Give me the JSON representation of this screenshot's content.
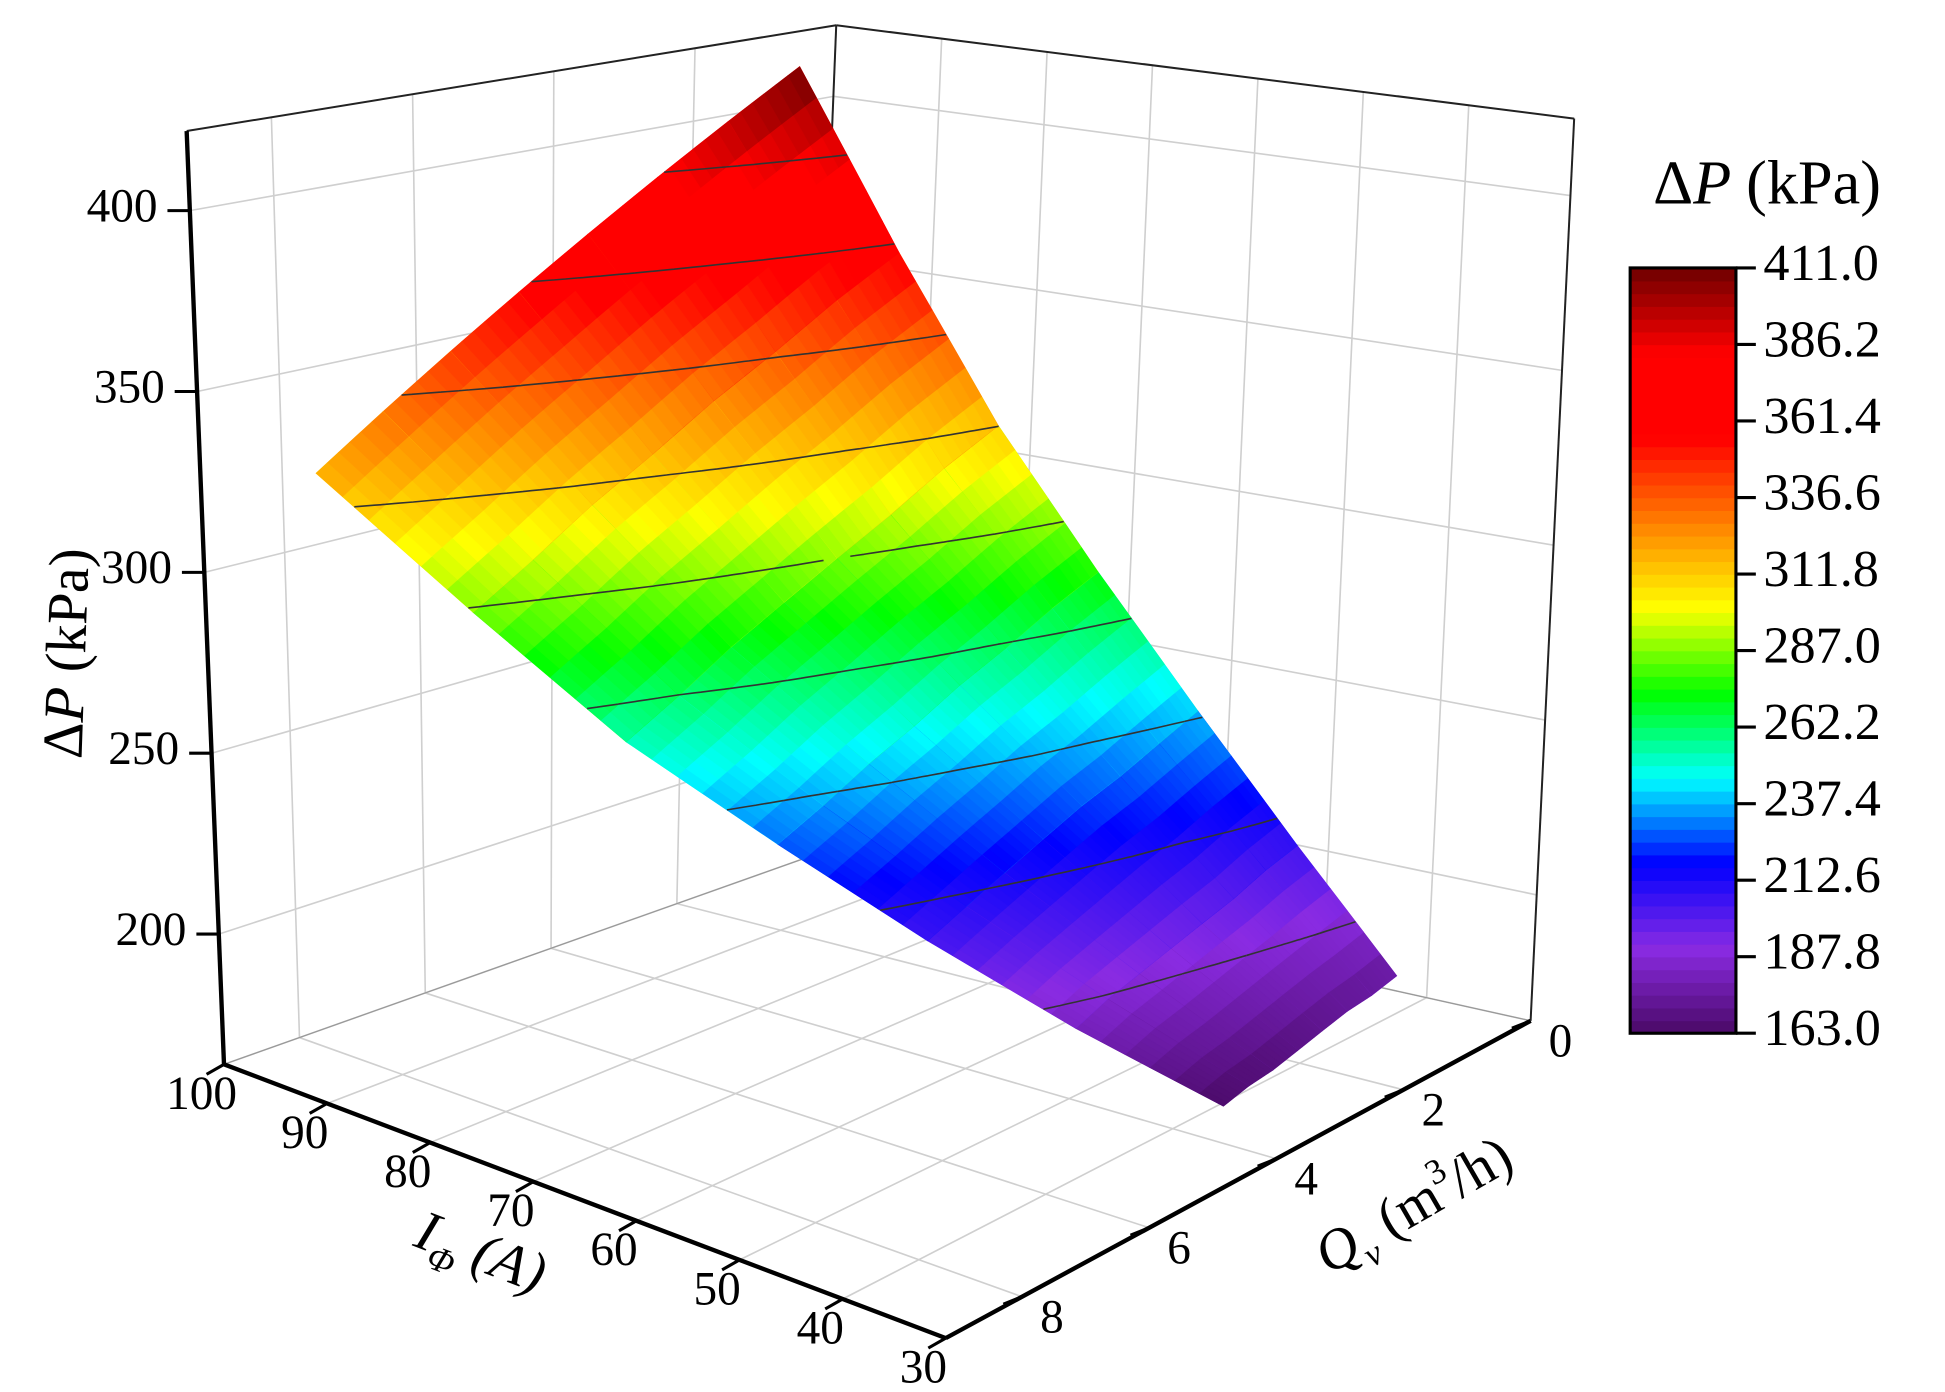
{
  "chart_data": {
    "type": "surface",
    "x_label": {
      "symbol": "I",
      "subscript": "Φ",
      "unit": "(A)"
    },
    "y_label": {
      "symbol": "Q",
      "subscript": "v",
      "unit": "(m",
      "superscript": "3",
      "unit_end": "/h)"
    },
    "z_label": {
      "prefix": "Δ",
      "symbol": "P",
      "unit": "(kPa)"
    },
    "xlim": [
      30,
      100
    ],
    "xticks": [
      30,
      40,
      50,
      60,
      70,
      80,
      90,
      100
    ],
    "ylim": [
      0,
      9.2
    ],
    "yticks": [
      0,
      2,
      4,
      6,
      8
    ],
    "zlim": [
      164,
      422
    ],
    "zticks": [
      200,
      250,
      300,
      350,
      400
    ],
    "grid": true,
    "x": [
      40,
      50,
      60,
      70,
      80,
      90,
      100
    ],
    "y": [
      [
        0.5,
        0.89,
        1.27,
        1.66,
        2.04,
        2.43,
        2.81,
        3.2
      ],
      [
        0.5,
        0.99,
        1.48,
        1.97,
        2.45,
        2.94,
        3.43,
        3.92
      ],
      [
        0.5,
        1.09,
        1.68,
        2.27,
        2.86,
        3.45,
        4.04,
        4.63
      ],
      [
        0.5,
        1.19,
        1.89,
        2.58,
        3.27,
        3.96,
        4.66,
        5.35
      ],
      [
        0.5,
        1.3,
        2.09,
        2.89,
        3.68,
        4.48,
        5.27,
        6.07
      ],
      [
        0.5,
        1.4,
        2.29,
        3.19,
        4.09,
        4.99,
        5.88,
        6.78
      ],
      [
        0.5,
        1.5,
        2.5,
        3.5,
        4.5,
        5.5,
        6.5,
        7.5
      ]
    ],
    "z": [
      [
        175,
        173,
        172,
        170,
        168,
        166,
        165,
        163
      ],
      [
        206,
        203,
        199,
        196,
        193,
        190,
        187,
        183
      ],
      [
        239,
        234,
        229,
        225,
        220,
        215,
        210,
        205
      ],
      [
        274,
        268,
        261,
        255,
        248,
        242,
        235,
        229
      ],
      [
        312,
        304,
        295,
        287,
        279,
        271,
        262,
        254
      ],
      [
        359,
        349,
        338,
        328,
        317,
        307,
        296,
        286
      ],
      [
        411,
        398,
        385,
        372,
        359,
        346,
        333,
        320
      ]
    ],
    "colormap": [
      "#4a0a66",
      "#8a2be2",
      "#0000ff",
      "#00ffff",
      "#00ff00",
      "#ffff00",
      "#ff8000",
      "#ff0000",
      "#ff0000",
      "#6e0000"
    ],
    "colorbar": {
      "title": {
        "prefix": "Δ",
        "symbol": "P",
        "unit": "(kPa)"
      },
      "ticks": [
        {
          "value": 163,
          "label": "163.0"
        },
        187.8,
        212.6,
        237.4,
        262.2,
        {
          "value": 287,
          "label": "287.0"
        },
        311.8,
        336.6,
        361.4,
        386.2,
        {
          "value": 411,
          "label": "411.0"
        }
      ]
    }
  }
}
